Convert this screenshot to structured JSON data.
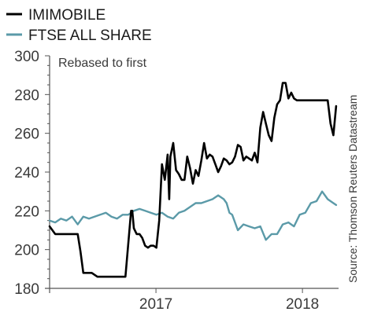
{
  "chart_data": {
    "type": "line",
    "annotation": "Rebased to first",
    "source": "Source: Thomson Reuters Datastream",
    "ylim": [
      180,
      300
    ],
    "yticks": [
      180,
      200,
      220,
      240,
      260,
      280,
      300
    ],
    "xlim": [
      "2016-04-11",
      "2018-04-01"
    ],
    "xticks": [
      {
        "date": "2017-01-01",
        "label": "2017"
      },
      {
        "date": "2018-01-01",
        "label": "2018"
      }
    ],
    "grid": false,
    "legend": "top-left",
    "series": [
      {
        "name": "IMIMOBILE",
        "color": "#000000",
        "x": [
          "2016-04-11",
          "2016-04-25",
          "2016-05-09",
          "2016-05-23",
          "2016-06-06",
          "2016-06-20",
          "2016-06-27",
          "2016-07-04",
          "2016-07-11",
          "2016-07-25",
          "2016-08-08",
          "2016-08-22",
          "2016-09-05",
          "2016-09-19",
          "2016-10-03",
          "2016-10-17",
          "2016-10-31",
          "2016-11-03",
          "2016-11-07",
          "2016-11-14",
          "2016-11-21",
          "2016-11-28",
          "2016-12-05",
          "2016-12-12",
          "2016-12-19",
          "2016-12-26",
          "2017-01-02",
          "2017-01-09",
          "2017-01-16",
          "2017-01-23",
          "2017-01-30",
          "2017-02-03",
          "2017-02-06",
          "2017-02-13",
          "2017-02-20",
          "2017-02-27",
          "2017-03-06",
          "2017-03-13",
          "2017-03-20",
          "2017-03-27",
          "2017-04-03",
          "2017-04-10",
          "2017-04-17",
          "2017-04-24",
          "2017-05-01",
          "2017-05-08",
          "2017-05-15",
          "2017-05-22",
          "2017-05-29",
          "2017-06-05",
          "2017-06-12",
          "2017-06-19",
          "2017-06-26",
          "2017-07-03",
          "2017-07-10",
          "2017-07-17",
          "2017-07-24",
          "2017-07-31",
          "2017-08-07",
          "2017-08-14",
          "2017-08-21",
          "2017-08-28",
          "2017-09-04",
          "2017-09-11",
          "2017-09-18",
          "2017-09-25",
          "2017-10-02",
          "2017-10-09",
          "2017-10-16",
          "2017-10-23",
          "2017-10-30",
          "2017-11-06",
          "2017-11-13",
          "2017-11-20",
          "2017-11-27",
          "2017-12-04",
          "2017-12-11",
          "2017-12-18",
          "2017-12-25",
          "2018-01-01",
          "2018-01-08",
          "2018-01-15",
          "2018-01-22",
          "2018-01-29",
          "2018-02-05",
          "2018-02-12",
          "2018-02-19",
          "2018-02-26",
          "2018-03-05",
          "2018-03-12",
          "2018-03-19",
          "2018-03-26"
        ],
        "values": [
          212,
          208,
          208,
          208,
          208,
          208,
          199,
          188,
          188,
          188,
          186,
          186,
          186,
          186,
          186,
          186,
          220,
          220,
          211,
          208,
          208,
          206,
          202,
          201,
          202,
          202,
          201,
          215,
          244,
          236,
          249,
          226,
          248,
          255,
          241,
          239,
          236,
          236,
          248,
          242,
          234,
          241,
          238,
          246,
          255,
          247,
          249,
          248,
          244,
          240,
          243,
          247,
          246,
          244,
          245,
          248,
          254,
          253,
          246,
          248,
          247,
          246,
          250,
          245,
          263,
          271,
          265,
          259,
          256,
          268,
          275,
          277,
          286,
          286,
          278,
          281,
          278,
          277,
          277,
          277,
          277,
          277,
          277,
          277,
          277,
          277,
          277,
          277,
          277,
          265,
          259,
          274
        ]
      },
      {
        "name": "FTSE ALL SHARE",
        "color": "#5b9aa8",
        "x": [
          "2016-04-11",
          "2016-04-25",
          "2016-05-09",
          "2016-05-23",
          "2016-06-06",
          "2016-06-20",
          "2016-06-27",
          "2016-07-04",
          "2016-07-18",
          "2016-08-01",
          "2016-08-15",
          "2016-08-29",
          "2016-09-12",
          "2016-09-26",
          "2016-10-10",
          "2016-10-24",
          "2016-11-07",
          "2016-11-21",
          "2016-12-05",
          "2016-12-19",
          "2017-01-02",
          "2017-01-16",
          "2017-01-30",
          "2017-02-13",
          "2017-02-27",
          "2017-03-13",
          "2017-03-27",
          "2017-04-10",
          "2017-04-24",
          "2017-05-08",
          "2017-05-22",
          "2017-06-05",
          "2017-06-19",
          "2017-06-26",
          "2017-07-03",
          "2017-07-10",
          "2017-07-24",
          "2017-08-07",
          "2017-08-21",
          "2017-09-04",
          "2017-09-18",
          "2017-10-02",
          "2017-10-16",
          "2017-10-30",
          "2017-11-13",
          "2017-11-27",
          "2017-12-11",
          "2017-12-25",
          "2018-01-08",
          "2018-01-22",
          "2018-02-05",
          "2018-02-19",
          "2018-03-05",
          "2018-03-19",
          "2018-03-26"
        ],
        "values": [
          215,
          214,
          216,
          215,
          217,
          213,
          215,
          217,
          216,
          217,
          218,
          219,
          217,
          216,
          218,
          218,
          220,
          221,
          220,
          219,
          218,
          219,
          217,
          216,
          219,
          220,
          222,
          224,
          224,
          225,
          226,
          228,
          226,
          224,
          219,
          218,
          210,
          213,
          212,
          211,
          212,
          205,
          208,
          208,
          213,
          214,
          212,
          218,
          219,
          224,
          225,
          230,
          226,
          224,
          223
        ]
      }
    ]
  }
}
